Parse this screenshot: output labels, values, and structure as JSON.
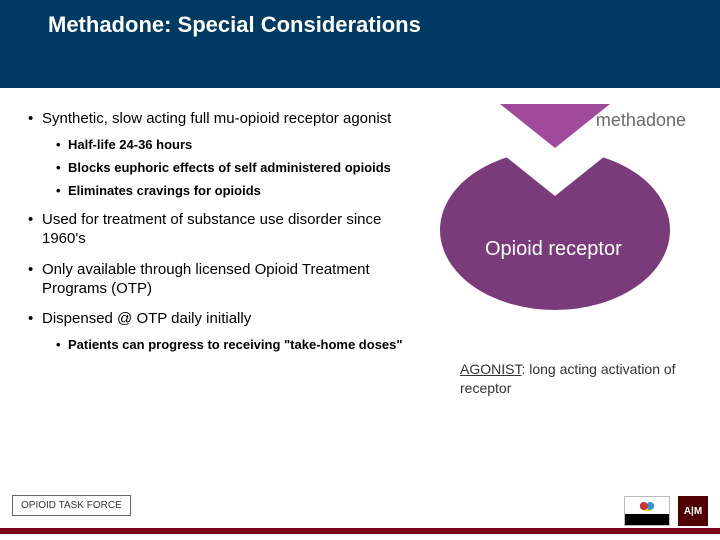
{
  "title": "Methadone: Special Considerations",
  "bullets": {
    "b1": "Synthetic, slow acting full mu-opioid receptor agonist",
    "b1_sub": {
      "s1": "Half-life 24-36 hours",
      "s2": "Blocks euphoric effects of self administered opioids",
      "s3": "Eliminates cravings for opioids"
    },
    "b2": "Used for treatment of substance use disorder since 1960's",
    "b3": "Only available through licensed Opioid Treatment Programs (OTP)",
    "b4": "Dispensed @ OTP daily initially",
    "b4_sub": {
      "s1": "Patients can progress to receiving \"take-home doses\""
    }
  },
  "diagram": {
    "drug_label": "methadone",
    "receptor_label": "Opioid receptor",
    "drug_color": "#9f4a9a",
    "receptor_color": "#7a3b7a",
    "label_color": "#6b6b6b"
  },
  "agonist": {
    "term": "AGONIST",
    "def": ": long acting activation of receptor"
  },
  "footer": {
    "task_force": "OPIOID TASK FORCE",
    "bar_color": "#7a0019",
    "logo_atm_text": "A|M"
  }
}
